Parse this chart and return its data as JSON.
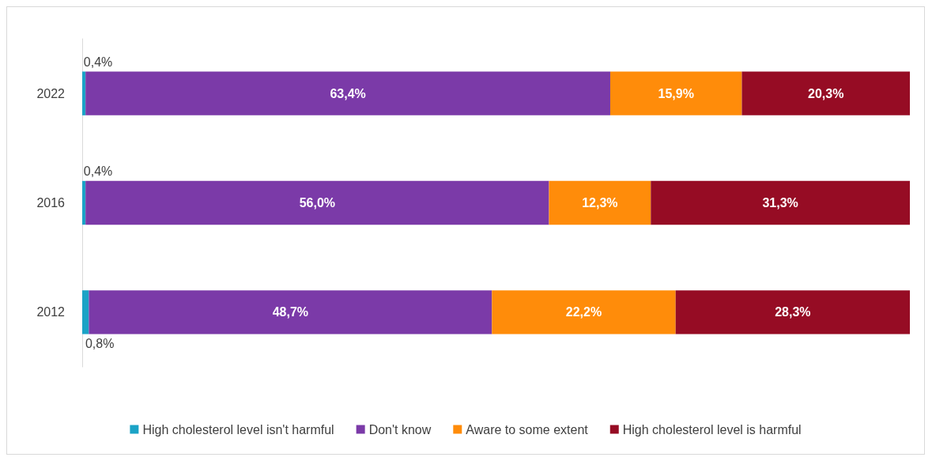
{
  "chart_data": {
    "type": "bar",
    "orientation": "horizontal",
    "stacked": true,
    "xlim": [
      0,
      100
    ],
    "tick_labels": "y",
    "categories": [
      "2022",
      "2016",
      "2012"
    ],
    "series": [
      {
        "name": "High cholesterol level isn't harmful",
        "color": "#1ba3c6",
        "values": [
          0.4,
          0.4,
          0.8
        ],
        "value_labels": [
          "0,4%",
          "0,4%",
          "0,8%"
        ]
      },
      {
        "name": "Don't know",
        "color": "#7b3aa8",
        "values": [
          63.4,
          56.0,
          48.7
        ],
        "value_labels": [
          "63,4%",
          "56,0%",
          "48,7%"
        ]
      },
      {
        "name": "Aware to some extent",
        "color": "#ff8c0a",
        "values": [
          15.9,
          12.3,
          22.2
        ],
        "value_labels": [
          "15,9%",
          "12,3%",
          "22,2%"
        ]
      },
      {
        "name": "High cholesterol level is harmful",
        "color": "#960c24",
        "values": [
          20.3,
          31.3,
          28.3
        ],
        "value_labels": [
          "20,3%",
          "31,3%",
          "28,3%"
        ]
      }
    ],
    "grid": false,
    "legend": "bottom"
  }
}
